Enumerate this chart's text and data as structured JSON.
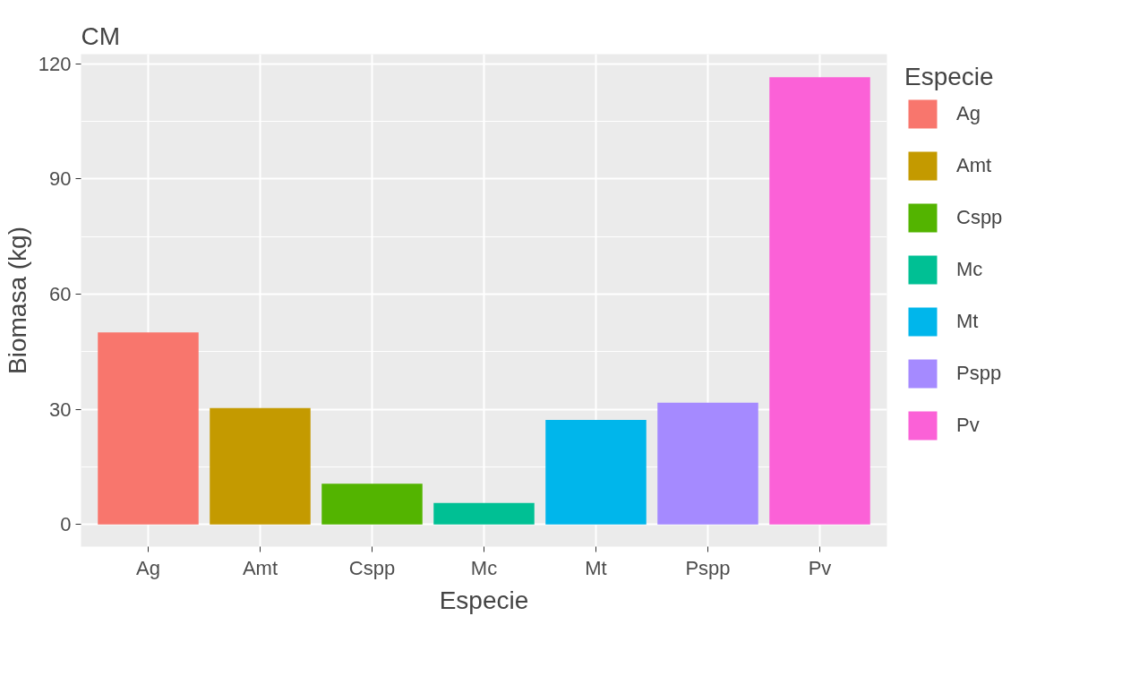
{
  "chart_data": {
    "type": "bar",
    "title": "CM",
    "xlabel": "Especie",
    "ylabel": "Biomasa (kg)",
    "legend_title": "Especie",
    "categories": [
      "Ag",
      "Amt",
      "Cspp",
      "Mc",
      "Mt",
      "Pspp",
      "Pv"
    ],
    "series": [
      {
        "name": "Ag",
        "color": "#f8766d",
        "values": [
          50,
          null,
          null,
          null,
          null,
          null,
          null
        ]
      },
      {
        "name": "Amt",
        "color": "#c49a00",
        "values": [
          null,
          30.3,
          null,
          null,
          null,
          null,
          null
        ]
      },
      {
        "name": "Cspp",
        "color": "#53b400",
        "values": [
          null,
          null,
          10.6,
          null,
          null,
          null,
          null
        ]
      },
      {
        "name": "Mc",
        "color": "#00c094",
        "values": [
          null,
          null,
          null,
          5.6,
          null,
          null,
          null
        ]
      },
      {
        "name": "Mt",
        "color": "#00b6eb",
        "values": [
          null,
          null,
          null,
          null,
          27.2,
          null,
          null
        ]
      },
      {
        "name": "Pspp",
        "color": "#a58aff",
        "values": [
          null,
          null,
          null,
          null,
          null,
          31.7,
          null
        ]
      },
      {
        "name": "Pv",
        "color": "#fb61d7",
        "values": [
          null,
          null,
          null,
          null,
          null,
          null,
          116.5
        ]
      }
    ],
    "ylim": [
      -5.8,
      122.5
    ],
    "yticks": [
      0,
      30,
      60,
      90,
      120
    ],
    "grid": true,
    "legend": "right"
  }
}
